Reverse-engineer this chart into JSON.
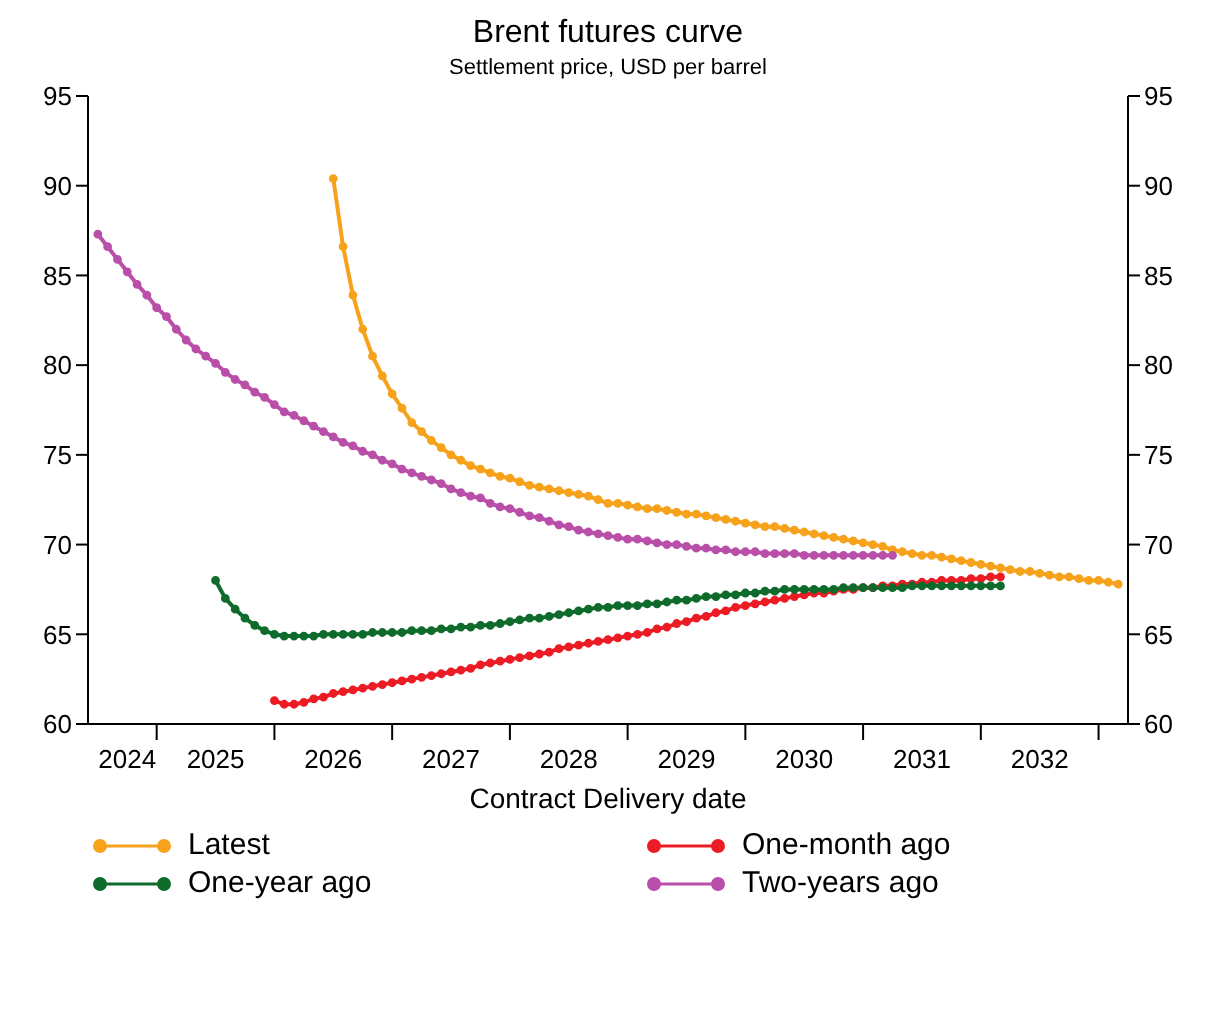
{
  "chart_data": {
    "type": "line",
    "title": "Brent futures curve",
    "subtitle": "Settlement price, USD per barrel",
    "xlabel": "Contract Delivery date",
    "series": [
      {
        "name": "Latest",
        "color": "#f7a21b",
        "x": [
          "2026-07",
          "2026-08",
          "2026-09",
          "2026-10",
          "2026-11",
          "2026-12",
          "2027-01",
          "2027-02",
          "2027-03",
          "2027-04",
          "2027-05",
          "2027-06",
          "2027-07",
          "2027-08",
          "2027-09",
          "2027-10",
          "2027-11",
          "2027-12",
          "2028-01",
          "2028-02",
          "2028-03",
          "2028-04",
          "2028-05",
          "2028-06",
          "2028-07",
          "2028-08",
          "2028-09",
          "2028-10",
          "2028-11",
          "2028-12",
          "2029-01",
          "2029-02",
          "2029-03",
          "2029-04",
          "2029-05",
          "2029-06",
          "2029-07",
          "2029-08",
          "2029-09",
          "2029-10",
          "2029-11",
          "2029-12",
          "2030-01",
          "2030-02",
          "2030-03",
          "2030-04",
          "2030-05",
          "2030-06",
          "2030-07",
          "2030-08",
          "2030-09",
          "2030-10",
          "2030-11",
          "2030-12",
          "2031-01",
          "2031-02",
          "2031-03",
          "2031-04",
          "2031-05",
          "2031-06",
          "2031-07",
          "2031-08",
          "2031-09",
          "2031-10",
          "2031-11",
          "2031-12",
          "2032-01",
          "2032-02",
          "2032-03",
          "2032-04",
          "2032-05",
          "2032-06",
          "2032-07",
          "2032-08",
          "2032-09",
          "2032-10",
          "2032-11",
          "2032-12",
          "2033-01",
          "2033-02",
          "2033-03"
        ],
        "values": [
          90.4,
          86.6,
          83.9,
          82.0,
          80.5,
          79.4,
          78.4,
          77.6,
          76.8,
          76.3,
          75.8,
          75.4,
          75.0,
          74.7,
          74.4,
          74.2,
          74.0,
          73.8,
          73.7,
          73.5,
          73.3,
          73.2,
          73.1,
          73.0,
          72.9,
          72.8,
          72.7,
          72.5,
          72.3,
          72.3,
          72.2,
          72.1,
          72.0,
          72.0,
          71.9,
          71.8,
          71.7,
          71.7,
          71.6,
          71.5,
          71.4,
          71.3,
          71.2,
          71.1,
          71.0,
          71.0,
          70.9,
          70.8,
          70.7,
          70.6,
          70.5,
          70.4,
          70.3,
          70.2,
          70.1,
          70.0,
          69.9,
          69.7,
          69.6,
          69.5,
          69.4,
          69.4,
          69.3,
          69.2,
          69.1,
          69.0,
          68.9,
          68.8,
          68.7,
          68.6,
          68.5,
          68.5,
          68.4,
          68.3,
          68.2,
          68.2,
          68.1,
          68.0,
          68.0,
          67.9,
          67.8
        ]
      },
      {
        "name": "One-month ago",
        "color": "#ec1c24",
        "x": [
          "2026-01",
          "2026-02",
          "2026-03",
          "2026-04",
          "2026-05",
          "2026-06",
          "2026-07",
          "2026-08",
          "2026-09",
          "2026-10",
          "2026-11",
          "2026-12",
          "2027-01",
          "2027-02",
          "2027-03",
          "2027-04",
          "2027-05",
          "2027-06",
          "2027-07",
          "2027-08",
          "2027-09",
          "2027-10",
          "2027-11",
          "2027-12",
          "2028-01",
          "2028-02",
          "2028-03",
          "2028-04",
          "2028-05",
          "2028-06",
          "2028-07",
          "2028-08",
          "2028-09",
          "2028-10",
          "2028-11",
          "2028-12",
          "2029-01",
          "2029-02",
          "2029-03",
          "2029-04",
          "2029-05",
          "2029-06",
          "2029-07",
          "2029-08",
          "2029-09",
          "2029-10",
          "2029-11",
          "2029-12",
          "2030-01",
          "2030-02",
          "2030-03",
          "2030-04",
          "2030-05",
          "2030-06",
          "2030-07",
          "2030-08",
          "2030-09",
          "2030-10",
          "2030-11",
          "2030-12",
          "2031-01",
          "2031-02",
          "2031-03",
          "2031-04",
          "2031-05",
          "2031-06",
          "2031-07",
          "2031-08",
          "2031-09",
          "2031-10",
          "2031-11",
          "2031-12",
          "2032-01",
          "2032-02",
          "2032-03"
        ],
        "values": [
          61.3,
          61.1,
          61.1,
          61.2,
          61.4,
          61.5,
          61.7,
          61.8,
          61.9,
          62.0,
          62.1,
          62.2,
          62.3,
          62.4,
          62.5,
          62.6,
          62.7,
          62.8,
          62.9,
          63.0,
          63.1,
          63.3,
          63.4,
          63.5,
          63.6,
          63.7,
          63.8,
          63.9,
          64.0,
          64.2,
          64.3,
          64.4,
          64.5,
          64.6,
          64.7,
          64.8,
          64.9,
          65.0,
          65.1,
          65.3,
          65.4,
          65.6,
          65.7,
          65.9,
          66.0,
          66.2,
          66.3,
          66.5,
          66.6,
          66.7,
          66.8,
          66.9,
          67.0,
          67.1,
          67.2,
          67.3,
          67.3,
          67.4,
          67.5,
          67.5,
          67.6,
          67.6,
          67.7,
          67.7,
          67.8,
          67.8,
          67.9,
          67.9,
          68.0,
          68.0,
          68.0,
          68.1,
          68.1,
          68.2,
          68.2
        ]
      },
      {
        "name": "One-year ago",
        "color": "#0e6b2c",
        "x": [
          "2025-07",
          "2025-08",
          "2025-09",
          "2025-10",
          "2025-11",
          "2025-12",
          "2026-01",
          "2026-02",
          "2026-03",
          "2026-04",
          "2026-05",
          "2026-06",
          "2026-07",
          "2026-08",
          "2026-09",
          "2026-10",
          "2026-11",
          "2026-12",
          "2027-01",
          "2027-02",
          "2027-03",
          "2027-04",
          "2027-05",
          "2027-06",
          "2027-07",
          "2027-08",
          "2027-09",
          "2027-10",
          "2027-11",
          "2027-12",
          "2028-01",
          "2028-02",
          "2028-03",
          "2028-04",
          "2028-05",
          "2028-06",
          "2028-07",
          "2028-08",
          "2028-09",
          "2028-10",
          "2028-11",
          "2028-12",
          "2029-01",
          "2029-02",
          "2029-03",
          "2029-04",
          "2029-05",
          "2029-06",
          "2029-07",
          "2029-08",
          "2029-09",
          "2029-10",
          "2029-11",
          "2029-12",
          "2030-01",
          "2030-02",
          "2030-03",
          "2030-04",
          "2030-05",
          "2030-06",
          "2030-07",
          "2030-08",
          "2030-09",
          "2030-10",
          "2030-11",
          "2030-12",
          "2031-01",
          "2031-02",
          "2031-03",
          "2031-04",
          "2031-05",
          "2031-06",
          "2031-07",
          "2031-08",
          "2031-09",
          "2031-10",
          "2031-11",
          "2031-12",
          "2032-01",
          "2032-02",
          "2032-03"
        ],
        "values": [
          68.0,
          67.0,
          66.4,
          65.9,
          65.5,
          65.2,
          65.0,
          64.9,
          64.9,
          64.9,
          64.9,
          65.0,
          65.0,
          65.0,
          65.0,
          65.0,
          65.1,
          65.1,
          65.1,
          65.1,
          65.2,
          65.2,
          65.2,
          65.3,
          65.3,
          65.4,
          65.4,
          65.5,
          65.5,
          65.6,
          65.7,
          65.8,
          65.9,
          65.9,
          66.0,
          66.1,
          66.2,
          66.3,
          66.4,
          66.5,
          66.5,
          66.6,
          66.6,
          66.6,
          66.7,
          66.7,
          66.8,
          66.9,
          66.9,
          67.0,
          67.1,
          67.1,
          67.2,
          67.2,
          67.3,
          67.3,
          67.4,
          67.4,
          67.5,
          67.5,
          67.5,
          67.5,
          67.5,
          67.5,
          67.6,
          67.6,
          67.6,
          67.6,
          67.6,
          67.6,
          67.6,
          67.7,
          67.7,
          67.7,
          67.7,
          67.7,
          67.7,
          67.7,
          67.7,
          67.7,
          67.7
        ]
      },
      {
        "name": "Two-years ago",
        "color": "#b94fa8",
        "x": [
          "2024-07",
          "2024-08",
          "2024-09",
          "2024-10",
          "2024-11",
          "2024-12",
          "2025-01",
          "2025-02",
          "2025-03",
          "2025-04",
          "2025-05",
          "2025-06",
          "2025-07",
          "2025-08",
          "2025-09",
          "2025-10",
          "2025-11",
          "2025-12",
          "2026-01",
          "2026-02",
          "2026-03",
          "2026-04",
          "2026-05",
          "2026-06",
          "2026-07",
          "2026-08",
          "2026-09",
          "2026-10",
          "2026-11",
          "2026-12",
          "2027-01",
          "2027-02",
          "2027-03",
          "2027-04",
          "2027-05",
          "2027-06",
          "2027-07",
          "2027-08",
          "2027-09",
          "2027-10",
          "2027-11",
          "2027-12",
          "2028-01",
          "2028-02",
          "2028-03",
          "2028-04",
          "2028-05",
          "2028-06",
          "2028-07",
          "2028-08",
          "2028-09",
          "2028-10",
          "2028-11",
          "2028-12",
          "2029-01",
          "2029-02",
          "2029-03",
          "2029-04",
          "2029-05",
          "2029-06",
          "2029-07",
          "2029-08",
          "2029-09",
          "2029-10",
          "2029-11",
          "2029-12",
          "2030-01",
          "2030-02",
          "2030-03",
          "2030-04",
          "2030-05",
          "2030-06",
          "2030-07",
          "2030-08",
          "2030-09",
          "2030-10",
          "2030-11",
          "2030-12",
          "2031-01",
          "2031-02",
          "2031-03",
          "2031-04"
        ],
        "values": [
          87.3,
          86.6,
          85.9,
          85.2,
          84.5,
          83.9,
          83.2,
          82.7,
          82.0,
          81.4,
          80.9,
          80.5,
          80.1,
          79.6,
          79.2,
          78.9,
          78.5,
          78.2,
          77.8,
          77.4,
          77.2,
          76.9,
          76.6,
          76.3,
          76.0,
          75.7,
          75.5,
          75.2,
          75.0,
          74.7,
          74.5,
          74.2,
          74.0,
          73.8,
          73.6,
          73.4,
          73.1,
          72.9,
          72.7,
          72.6,
          72.3,
          72.1,
          72.0,
          71.8,
          71.6,
          71.5,
          71.3,
          71.1,
          71.0,
          70.8,
          70.7,
          70.6,
          70.5,
          70.4,
          70.3,
          70.3,
          70.2,
          70.1,
          70.0,
          70.0,
          69.9,
          69.8,
          69.8,
          69.7,
          69.7,
          69.6,
          69.6,
          69.6,
          69.5,
          69.5,
          69.5,
          69.5,
          69.4,
          69.4,
          69.4,
          69.4,
          69.4,
          69.4,
          69.4,
          69.4,
          69.4,
          69.4
        ]
      }
    ],
    "xlim": [
      "2024-06",
      "2033-04"
    ],
    "xticks": [
      {
        "value": "2024-10",
        "label": "2024"
      },
      {
        "value": "2025-01",
        "label": null
      },
      {
        "value": "2025-07",
        "label": "2025"
      },
      {
        "value": "2026-01",
        "label": null
      },
      {
        "value": "2026-07",
        "label": "2026"
      },
      {
        "value": "2027-01",
        "label": null
      },
      {
        "value": "2027-07",
        "label": "2027"
      },
      {
        "value": "2028-01",
        "label": null
      },
      {
        "value": "2028-07",
        "label": "2028"
      },
      {
        "value": "2029-01",
        "label": null
      },
      {
        "value": "2029-07",
        "label": "2029"
      },
      {
        "value": "2030-01",
        "label": null
      },
      {
        "value": "2030-07",
        "label": "2030"
      },
      {
        "value": "2031-01",
        "label": null
      },
      {
        "value": "2031-07",
        "label": "2031"
      },
      {
        "value": "2032-01",
        "label": null
      },
      {
        "value": "2032-07",
        "label": "2032"
      },
      {
        "value": "2033-01",
        "label": null
      }
    ],
    "ylim": [
      60,
      95
    ],
    "yticks": [
      60,
      65,
      70,
      75,
      80,
      85,
      90,
      95
    ],
    "y2lim": [
      60,
      95
    ],
    "y2ticks": [
      60,
      65,
      70,
      75,
      80,
      85,
      90,
      95
    ],
    "grid": false,
    "legend": "bottom",
    "marker": "circle",
    "line_style": "solid"
  }
}
